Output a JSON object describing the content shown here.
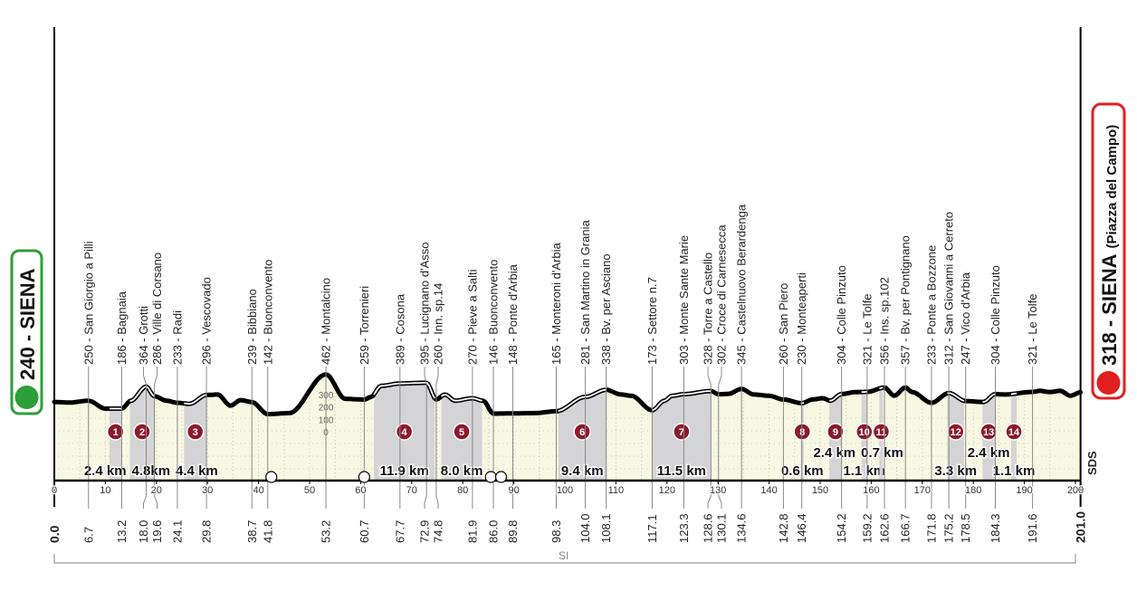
{
  "chart_data": {
    "type": "area",
    "title": "",
    "xlabel": "",
    "ylabel": "",
    "xlim": [
      0,
      201.0
    ],
    "x_ticks": [
      0,
      10,
      20,
      30,
      40,
      50,
      60,
      70,
      80,
      90,
      100,
      110,
      120,
      130,
      140,
      150,
      160,
      170,
      180,
      190,
      200
    ],
    "elevation_scale_ticks": [
      300,
      200,
      100,
      0
    ],
    "start": {
      "label": "240 - SIENA",
      "km": "0.0",
      "elevation": 240
    },
    "finish": {
      "label": "318 - SIENA",
      "sub": "(Piazza del Campo)",
      "km": "201.0",
      "elevation": 318
    },
    "waypoints": [
      {
        "km": "6.7",
        "ele": 250,
        "name": "250 - San Giorgio a Pilli"
      },
      {
        "km": "13.2",
        "ele": 186,
        "name": "186 - Bagnaia"
      },
      {
        "km": "18.0",
        "ele": 364,
        "name": "364 - Grotti"
      },
      {
        "km": "19.6",
        "ele": 286,
        "name": "286 - Ville di Corsano"
      },
      {
        "km": "24.1",
        "ele": 233,
        "name": "233 - Radi"
      },
      {
        "km": "29.8",
        "ele": 296,
        "name": "296 - Vescovado"
      },
      {
        "km": "38.7",
        "ele": 239,
        "name": "239 - Bibbiano"
      },
      {
        "km": "41.8",
        "ele": 142,
        "name": "142 - Buonconvento"
      },
      {
        "km": "53.2",
        "ele": 462,
        "name": "462 - Montalcino"
      },
      {
        "km": "60.7",
        "ele": 259,
        "name": "259 - Torrenieri"
      },
      {
        "km": "67.7",
        "ele": 389,
        "name": "389 - Cosona"
      },
      {
        "km": "72.9",
        "ele": 395,
        "name": "395 - Lucignano d'Asso"
      },
      {
        "km": "74.8",
        "ele": 260,
        "name": "260 - Inn. sp.14"
      },
      {
        "km": "81.9",
        "ele": 270,
        "name": "270 - Pieve a Salti"
      },
      {
        "km": "86.0",
        "ele": 146,
        "name": "146 - Buonconvento"
      },
      {
        "km": "89.8",
        "ele": 148,
        "name": "148 - Ponte d'Arbia"
      },
      {
        "km": "98.3",
        "ele": 165,
        "name": "165 - Monteroni d'Arbia"
      },
      {
        "km": "104.0",
        "ele": 281,
        "name": "281 - San Martino in Grania"
      },
      {
        "km": "108.1",
        "ele": 338,
        "name": "338 - Bv. per Asciano"
      },
      {
        "km": "117.1",
        "ele": 173,
        "name": "173 - Settore n.7"
      },
      {
        "km": "123.3",
        "ele": 303,
        "name": "303 - Monte Sante Marie"
      },
      {
        "km": "128.6",
        "ele": 328,
        "name": "328 - Torre a Castello"
      },
      {
        "km": "130.1",
        "ele": 302,
        "name": "302 - Croce di Carnesecca"
      },
      {
        "km": "134.6",
        "ele": 345,
        "name": "345 - Castelnuovo Berardenga"
      },
      {
        "km": "142.8",
        "ele": 260,
        "name": "260 - San Piero"
      },
      {
        "km": "146.4",
        "ele": 230,
        "name": "230 - Monteaperti"
      },
      {
        "km": "154.2",
        "ele": 304,
        "name": "304 - Colle Pinzuto"
      },
      {
        "km": "159.2",
        "ele": 321,
        "name": "321 - Le Tolfe"
      },
      {
        "km": "162.6",
        "ele": 356,
        "name": "356 - Ins. sp.102"
      },
      {
        "km": "166.7",
        "ele": 357,
        "name": "357 - Bv. per Pontignano"
      },
      {
        "km": "171.8",
        "ele": 233,
        "name": "233 - Ponte a Bozzone"
      },
      {
        "km": "175.2",
        "ele": 312,
        "name": "312 - San Giovanni a Cerreto"
      },
      {
        "km": "178.5",
        "ele": 247,
        "name": "247 - Vico d'Arbia"
      },
      {
        "km": "184.3",
        "ele": 304,
        "name": "304 - Colle Pinzuto"
      },
      {
        "km": "191.6",
        "ele": 321,
        "name": "321 - Le Tolfe"
      }
    ],
    "profile_extra": [
      [
        3,
        235
      ],
      [
        10,
        186
      ],
      [
        15,
        250
      ],
      [
        22,
        250
      ],
      [
        26.5,
        225
      ],
      [
        32,
        300
      ],
      [
        34.5,
        210
      ],
      [
        36.5,
        255
      ],
      [
        46,
        150
      ],
      [
        57,
        265
      ],
      [
        62,
        280
      ],
      [
        64,
        370
      ],
      [
        76.5,
        300
      ],
      [
        78.5,
        250
      ],
      [
        84,
        250
      ],
      [
        94,
        150
      ],
      [
        111,
        300
      ],
      [
        113,
        290
      ],
      [
        119.5,
        250
      ],
      [
        121,
        290
      ],
      [
        132,
        305
      ],
      [
        137,
        300
      ],
      [
        140,
        290
      ],
      [
        148.5,
        260
      ],
      [
        150.5,
        270
      ],
      [
        152,
        250
      ],
      [
        157,
        320
      ],
      [
        164.5,
        290
      ],
      [
        168,
        320
      ],
      [
        182,
        240
      ],
      [
        186,
        300
      ],
      [
        193,
        330
      ],
      [
        195,
        320
      ],
      [
        197,
        330
      ],
      [
        199,
        290
      ]
    ],
    "sectors": [
      {
        "n": "1",
        "from": 10.8,
        "to": 13.2,
        "length": "2.4 km",
        "row": "low"
      },
      {
        "n": "2",
        "from": 14.8,
        "to": 19.6,
        "length": "4.8km",
        "row": "low"
      },
      {
        "n": "3",
        "from": 25.4,
        "to": 29.8,
        "length": "4.4 km",
        "row": "low"
      },
      {
        "n": "4",
        "from": 62.6,
        "to": 74.5,
        "length": "11.9 km",
        "row": "low"
      },
      {
        "n": "5",
        "from": 75.8,
        "to": 83.8,
        "length": "8.0 km",
        "row": "low"
      },
      {
        "n": "6",
        "from": 98.7,
        "to": 108.1,
        "length": "9.4 km",
        "row": "low"
      },
      {
        "n": "7",
        "from": 117.1,
        "to": 128.6,
        "length": "11.5 km",
        "row": "low"
      },
      {
        "n": "8",
        "from": 146.2,
        "to": 146.8,
        "length": "0.6 km",
        "row": "low"
      },
      {
        "n": "9",
        "from": 151.8,
        "to": 154.2,
        "length": "2.4 km",
        "row": "high"
      },
      {
        "n": "10",
        "from": 158.1,
        "to": 159.2,
        "length": "1.1 km",
        "row": "low"
      },
      {
        "n": "11",
        "from": 161.6,
        "to": 162.3,
        "length": "0.7 km",
        "row": "high"
      },
      {
        "n": "12",
        "from": 174.9,
        "to": 178.2,
        "length": "3.3 km",
        "row": "low"
      },
      {
        "n": "13",
        "from": 181.8,
        "to": 184.2,
        "length": "2.4 km",
        "row": "high"
      },
      {
        "n": "14",
        "from": 187.4,
        "to": 188.5,
        "length": "1.1 km",
        "row": "low"
      }
    ],
    "bottom_label": "SI",
    "logo": "SDS",
    "colors": {
      "start": "#2e9e3a",
      "finish": "#e02020",
      "sector_badge": "#8b1a2b",
      "fill": "#f8f8e2",
      "sector_fill": "#d4d4d6",
      "profile": "#000000"
    }
  }
}
